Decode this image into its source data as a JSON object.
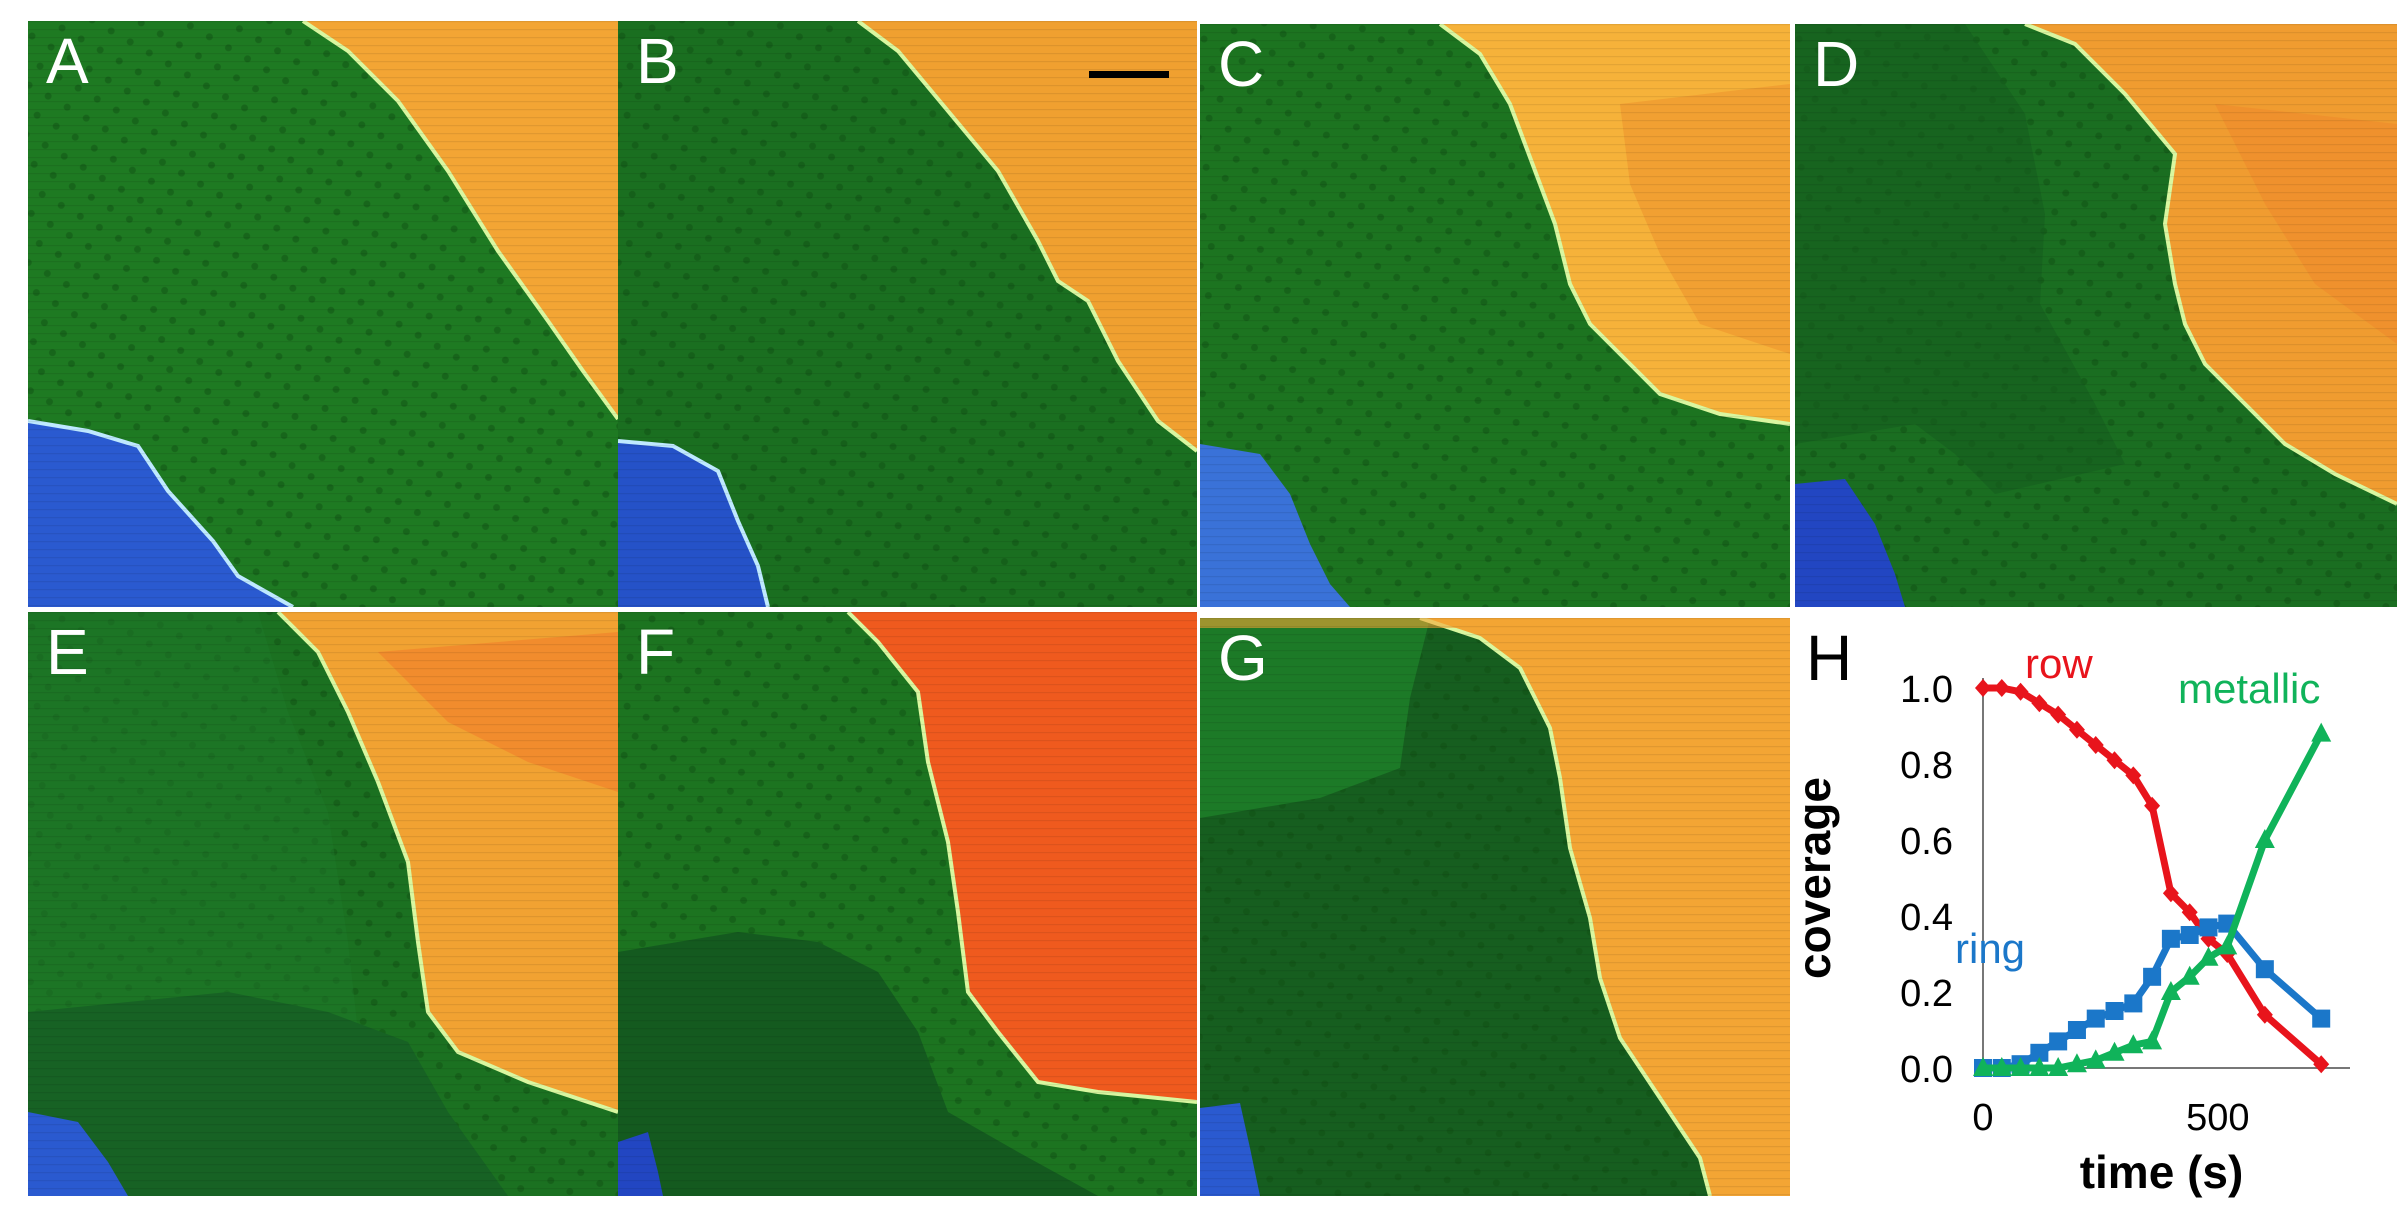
{
  "panels": [
    {
      "label": "A"
    },
    {
      "label": "B"
    },
    {
      "label": "C"
    },
    {
      "label": "D"
    },
    {
      "label": "E"
    },
    {
      "label": "F"
    },
    {
      "label": "G"
    }
  ],
  "colors": {
    "blue_phase": "#2a5ad0",
    "green_phase": "#1f7a1f",
    "green_dark": "#155e1e",
    "orange_phase": "#f2a22e",
    "red_phase": "#ee5a1e",
    "edge": "#d9f7a0"
  },
  "chart_data": {
    "type": "line",
    "panel_label": "H",
    "xlabel": "time (s)",
    "ylabel": "coverage",
    "x_ticks": [
      "0",
      "500"
    ],
    "y_ticks": [
      "0.0",
      "0.2",
      "0.4",
      "0.6",
      "0.8",
      "1.0"
    ],
    "xlim": [
      0,
      760
    ],
    "ylim": [
      0,
      1.0
    ],
    "grid": false,
    "series": [
      {
        "name": "row",
        "color": "#e8141c",
        "marker": "diamond",
        "x": [
          0,
          40,
          80,
          120,
          160,
          200,
          240,
          280,
          320,
          360,
          400,
          440,
          480,
          520,
          600,
          720
        ],
        "y": [
          1.0,
          1.0,
          0.99,
          0.96,
          0.93,
          0.89,
          0.85,
          0.81,
          0.77,
          0.69,
          0.46,
          0.41,
          0.34,
          0.3,
          0.14,
          0.01
        ]
      },
      {
        "name": "ring",
        "color": "#1b77c9",
        "marker": "square",
        "x": [
          0,
          40,
          80,
          120,
          160,
          200,
          240,
          280,
          320,
          360,
          400,
          440,
          480,
          520,
          600,
          720
        ],
        "y": [
          0.0,
          0.0,
          0.01,
          0.04,
          0.07,
          0.1,
          0.13,
          0.15,
          0.17,
          0.24,
          0.34,
          0.35,
          0.37,
          0.38,
          0.26,
          0.13
        ]
      },
      {
        "name": "metallic",
        "color": "#10b35a",
        "marker": "triangle",
        "x": [
          0,
          40,
          80,
          120,
          160,
          200,
          240,
          280,
          320,
          360,
          400,
          440,
          480,
          520,
          600,
          720
        ],
        "y": [
          0.0,
          0.0,
          0.0,
          0.0,
          0.0,
          0.01,
          0.02,
          0.04,
          0.06,
          0.07,
          0.2,
          0.24,
          0.29,
          0.32,
          0.6,
          0.88
        ]
      }
    ]
  }
}
